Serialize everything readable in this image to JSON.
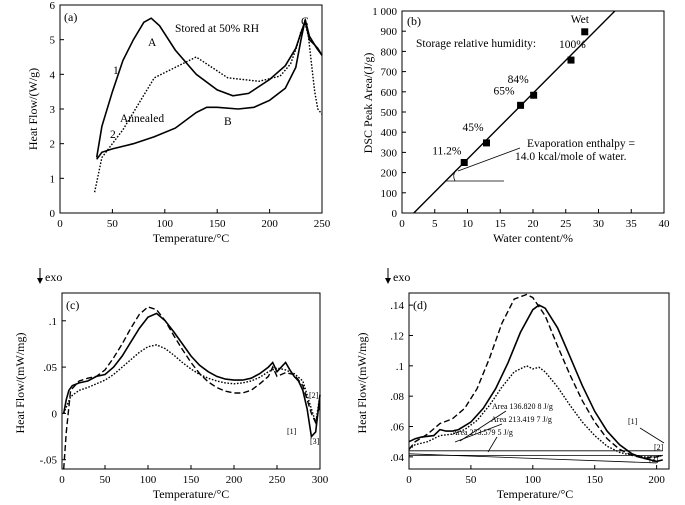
{
  "chart_data": [
    {
      "type": "line",
      "panel_label": "(a)",
      "xlabel": "Temperature/°C",
      "ylabel": "Heat Flow/(W/g)",
      "xlim": [
        0,
        250
      ],
      "ylim": [
        0,
        6
      ],
      "x_ticks": [
        0,
        50,
        100,
        150,
        200,
        250
      ],
      "y_ticks": [
        0,
        1,
        2,
        3,
        4,
        5,
        6
      ],
      "grid": false,
      "series": [
        {
          "name": "1",
          "style": "solid",
          "x": [
            35,
            40,
            50,
            60,
            70,
            80,
            87,
            95,
            110,
            130,
            150,
            165,
            180,
            200,
            215,
            225,
            230,
            234,
            238,
            243,
            246,
            250
          ],
          "y": [
            1.6,
            2.5,
            3.5,
            4.4,
            5.0,
            5.5,
            5.62,
            5.4,
            4.7,
            4.0,
            3.55,
            3.38,
            3.45,
            3.85,
            4.25,
            4.75,
            5.2,
            5.55,
            5.0,
            4.85,
            4.75,
            4.55
          ]
        },
        {
          "name": "2",
          "style": "solid",
          "x": [
            35,
            40,
            50,
            70,
            90,
            110,
            130,
            140,
            150,
            170,
            185,
            200,
            215,
            225,
            230,
            234,
            238,
            245,
            250
          ],
          "y": [
            1.55,
            1.75,
            1.85,
            2.0,
            2.2,
            2.45,
            2.9,
            3.05,
            3.05,
            3.0,
            3.05,
            3.25,
            3.6,
            4.2,
            5.0,
            5.58,
            5.1,
            4.75,
            4.55
          ]
        },
        {
          "name": "Stored at 50% RH (dotted)",
          "style": "dotted",
          "x": [
            33,
            40,
            60,
            90,
            130,
            160,
            190,
            210,
            220,
            226,
            230,
            234,
            237,
            240,
            243,
            246,
            250
          ],
          "y": [
            0.6,
            1.6,
            2.4,
            3.9,
            4.5,
            3.9,
            3.8,
            3.95,
            4.3,
            4.8,
            5.25,
            5.45,
            5.1,
            4.3,
            3.5,
            3.0,
            2.85
          ]
        }
      ],
      "annotations": [
        "Stored at 50% RH",
        "A",
        "B",
        "C",
        "1",
        "2",
        "Annealed"
      ]
    },
    {
      "type": "scatter",
      "panel_label": "(b)",
      "xlabel": "Water content/%",
      "ylabel": "DSC Peak Area/(J/g)",
      "xlim": [
        0,
        40
      ],
      "ylim": [
        0,
        1000
      ],
      "x_ticks": [
        0,
        5,
        10,
        15,
        20,
        25,
        30,
        35,
        40
      ],
      "y_ticks": [
        0,
        100,
        200,
        300,
        400,
        500,
        600,
        700,
        800,
        900,
        "1 000"
      ],
      "grid": false,
      "points": [
        {
          "x": 9.5,
          "y": 250,
          "label": "11.2%"
        },
        {
          "x": 12.9,
          "y": 347,
          "label": "45%"
        },
        {
          "x": 18.1,
          "y": 533,
          "label": "65%"
        },
        {
          "x": 20.1,
          "y": 583,
          "label": "84%"
        },
        {
          "x": 25.8,
          "y": 757,
          "label": "100%"
        },
        {
          "x": 27.9,
          "y": 897,
          "label": "Wet"
        }
      ],
      "fit_line": {
        "x": [
          1.8,
          32.5
        ],
        "y": [
          0,
          1000
        ]
      },
      "annotations": [
        "Storage relative humidity:",
        "Evaporation enthalpy =",
        "14.0 kcal/mole of water."
      ]
    },
    {
      "type": "line",
      "panel_label": "(c)",
      "xlabel": "Temperature/°C",
      "ylabel": "Heat Flow/(mW/mg)",
      "xlim": [
        0,
        300
      ],
      "ylim": [
        -0.06,
        0.13
      ],
      "x_ticks": [
        0,
        50,
        100,
        150,
        200,
        250,
        300
      ],
      "y_ticks": [
        -0.05,
        0,
        0.05,
        0.1
      ],
      "corner_label": "exo",
      "grid": false,
      "series": [
        {
          "name": "[1]",
          "style": "solid",
          "x": [
            2,
            5,
            8,
            12,
            20,
            30,
            40,
            50,
            60,
            70,
            80,
            90,
            100,
            110,
            120,
            130,
            140,
            150,
            160,
            170,
            180,
            190,
            200,
            210,
            220,
            230,
            240,
            245,
            250,
            255,
            260,
            265,
            270,
            275,
            280,
            285,
            290,
            295,
            300
          ],
          "y": [
            0.0,
            0.015,
            0.025,
            0.03,
            0.033,
            0.035,
            0.04,
            0.042,
            0.05,
            0.062,
            0.077,
            0.092,
            0.104,
            0.108,
            0.1,
            0.088,
            0.075,
            0.062,
            0.052,
            0.045,
            0.04,
            0.037,
            0.036,
            0.036,
            0.038,
            0.043,
            0.05,
            0.055,
            0.045,
            0.05,
            0.055,
            0.047,
            0.04,
            0.035,
            0.025,
            0.005,
            -0.025,
            -0.02,
            0.02
          ]
        },
        {
          "name": "[2]",
          "style": "dashed",
          "x": [
            2,
            5,
            10,
            20,
            30,
            40,
            50,
            60,
            70,
            80,
            90,
            100,
            110,
            120,
            130,
            140,
            150,
            160,
            170,
            180,
            190,
            200,
            210,
            220,
            230,
            240,
            245,
            250,
            260,
            270,
            280,
            285,
            290,
            295,
            300
          ],
          "y": [
            -0.06,
            -0.02,
            0.025,
            0.035,
            0.038,
            0.04,
            0.047,
            0.06,
            0.075,
            0.092,
            0.107,
            0.115,
            0.112,
            0.1,
            0.084,
            0.069,
            0.055,
            0.043,
            0.034,
            0.028,
            0.024,
            0.022,
            0.022,
            0.025,
            0.032,
            0.04,
            0.05,
            0.04,
            0.044,
            0.042,
            0.03,
            0.015,
            0.0,
            -0.01,
            0.01
          ]
        },
        {
          "name": "[3]",
          "style": "dotted",
          "x": [
            2,
            10,
            20,
            30,
            40,
            50,
            60,
            70,
            80,
            90,
            100,
            110,
            120,
            130,
            140,
            150,
            160,
            170,
            180,
            190,
            200,
            210,
            220,
            230,
            240,
            250,
            260,
            270,
            280,
            285,
            290,
            295,
            300
          ],
          "y": [
            0.0,
            0.018,
            0.025,
            0.028,
            0.032,
            0.036,
            0.042,
            0.05,
            0.058,
            0.066,
            0.072,
            0.074,
            0.07,
            0.063,
            0.055,
            0.048,
            0.042,
            0.038,
            0.035,
            0.033,
            0.032,
            0.033,
            0.035,
            0.039,
            0.045,
            0.049,
            0.047,
            0.043,
            0.035,
            0.02,
            0.005,
            -0.01,
            0.02
          ]
        }
      ]
    },
    {
      "type": "line",
      "panel_label": "(d)",
      "xlabel": "Temperature/°C",
      "ylabel": "Heat Flow/(mW/mg)",
      "xlim": [
        0,
        210
      ],
      "ylim": [
        0.032,
        0.148
      ],
      "x_ticks": [
        0,
        50,
        100,
        150,
        200
      ],
      "y_ticks": [
        0.04,
        0.06,
        0.08,
        0.1,
        0.12,
        0.14
      ],
      "corner_label": "exo",
      "grid": false,
      "series": [
        {
          "name": "[1]",
          "style": "solid",
          "x": [
            0,
            5,
            10,
            20,
            25,
            30,
            35,
            40,
            50,
            60,
            70,
            80,
            90,
            100,
            105,
            110,
            120,
            130,
            140,
            150,
            160,
            170,
            180,
            190,
            195,
            200,
            205
          ],
          "y": [
            0.05,
            0.052,
            0.053,
            0.054,
            0.058,
            0.057,
            0.057,
            0.058,
            0.063,
            0.072,
            0.085,
            0.102,
            0.122,
            0.137,
            0.14,
            0.138,
            0.125,
            0.106,
            0.087,
            0.07,
            0.057,
            0.048,
            0.042,
            0.039,
            0.038,
            0.037,
            0.038
          ]
        },
        {
          "name": "[2]",
          "style": "dashed",
          "x": [
            0,
            5,
            15,
            25,
            35,
            45,
            55,
            65,
            75,
            85,
            95,
            100,
            110,
            120,
            130,
            140,
            150,
            160,
            170,
            180,
            190,
            200,
            205
          ],
          "y": [
            0.045,
            0.05,
            0.055,
            0.062,
            0.065,
            0.072,
            0.085,
            0.105,
            0.128,
            0.144,
            0.147,
            0.145,
            0.133,
            0.113,
            0.094,
            0.077,
            0.063,
            0.052,
            0.045,
            0.041,
            0.039,
            0.04,
            0.041
          ]
        },
        {
          "name": "[3]",
          "style": "dotted",
          "x": [
            0,
            5,
            15,
            25,
            35,
            45,
            55,
            65,
            75,
            85,
            95,
            100,
            105,
            110,
            120,
            130,
            140,
            150,
            160,
            170,
            180,
            190,
            200,
            205
          ],
          "y": [
            0.045,
            0.048,
            0.05,
            0.054,
            0.055,
            0.058,
            0.064,
            0.074,
            0.086,
            0.096,
            0.1,
            0.098,
            0.099,
            0.096,
            0.086,
            0.074,
            0.063,
            0.054,
            0.047,
            0.043,
            0.041,
            0.04,
            0.04,
            0.041
          ]
        }
      ],
      "baselines": [
        {
          "from": [
            0,
            0.042
          ],
          "to": [
            200,
            0.036
          ]
        },
        {
          "from": [
            0,
            0.041
          ],
          "to": [
            205,
            0.041
          ]
        },
        {
          "from": [
            0,
            0.044
          ],
          "to": [
            205,
            0.044
          ]
        }
      ],
      "annotations": [
        "Area 136.820 8 J/g",
        "Area 213.419 7 J/g",
        "Area 273.579 5 J/g"
      ]
    }
  ]
}
